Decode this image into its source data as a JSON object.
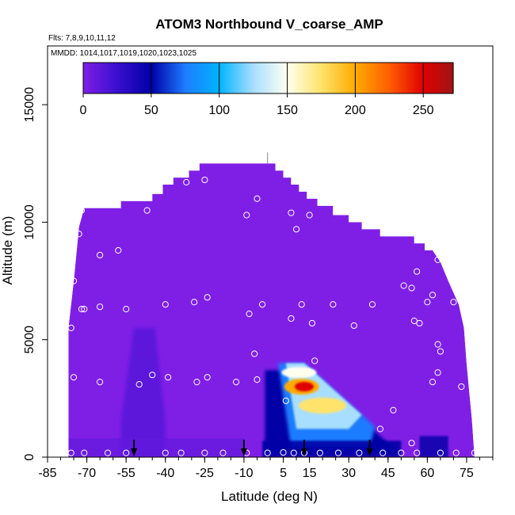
{
  "chart_data": {
    "type": "heatmap",
    "title": "ATOM3 Northbound V_coarse_AMP",
    "subtitle_flights": "Flts: 7,8,9,10,11,12",
    "subtitle_dates": "MMDD: 1014,1017,1019,1020,1023,1025",
    "xlabel": "Latitude (deg N)",
    "ylabel": "Altitude (m)",
    "xlim": [
      -85,
      85
    ],
    "ylim": [
      0,
      17500
    ],
    "x_ticks": [
      -85,
      -70,
      -55,
      -40,
      -25,
      -10,
      5,
      15,
      30,
      45,
      60,
      75
    ],
    "x_tick_labels": [
      "-85",
      "-70",
      "-55",
      "-40",
      "-25",
      "-10",
      "5",
      "15",
      "30",
      "45",
      "60",
      "75"
    ],
    "y_ticks": [
      0,
      5000,
      10000,
      15000
    ],
    "y_tick_labels": [
      "0",
      "5000",
      "10000",
      "15000"
    ],
    "colorbar": {
      "ticks": [
        0,
        50,
        100,
        150,
        200,
        250
      ],
      "tick_labels": [
        "0",
        "50",
        "100",
        "150",
        "200",
        "250"
      ],
      "range": [
        0,
        272
      ],
      "stops": [
        {
          "v": 0,
          "color": "#7f1fe6"
        },
        {
          "v": 25,
          "color": "#3a0fd0"
        },
        {
          "v": 50,
          "color": "#0000a6"
        },
        {
          "v": 75,
          "color": "#1e7cff"
        },
        {
          "v": 100,
          "color": "#00b4ff"
        },
        {
          "v": 125,
          "color": "#a8deff"
        },
        {
          "v": 150,
          "color": "#fffff0"
        },
        {
          "v": 175,
          "color": "#ffe36a"
        },
        {
          "v": 200,
          "color": "#ffab00"
        },
        {
          "v": 225,
          "color": "#ff5e00"
        },
        {
          "v": 250,
          "color": "#e00000"
        },
        {
          "v": 272,
          "color": "#a01515"
        }
      ]
    },
    "envelope_top": [
      {
        "x": -77,
        "y": 5500
      },
      {
        "x": -75,
        "y": 7500
      },
      {
        "x": -73,
        "y": 9800
      },
      {
        "x": -71,
        "y": 10600
      },
      {
        "x": -57,
        "y": 10600
      },
      {
        "x": -57,
        "y": 10900
      },
      {
        "x": -45,
        "y": 10900
      },
      {
        "x": -45,
        "y": 11200
      },
      {
        "x": -41,
        "y": 11200
      },
      {
        "x": -41,
        "y": 11600
      },
      {
        "x": -37,
        "y": 11600
      },
      {
        "x": -37,
        "y": 11900
      },
      {
        "x": -31,
        "y": 11900
      },
      {
        "x": -31,
        "y": 12200
      },
      {
        "x": -27,
        "y": 12200
      },
      {
        "x": -27,
        "y": 12500
      },
      {
        "x": 2,
        "y": 12500
      },
      {
        "x": 2,
        "y": 12200
      },
      {
        "x": 5,
        "y": 12200
      },
      {
        "x": 5,
        "y": 11900
      },
      {
        "x": 8,
        "y": 11900
      },
      {
        "x": 8,
        "y": 11600
      },
      {
        "x": 11,
        "y": 11600
      },
      {
        "x": 11,
        "y": 11300
      },
      {
        "x": 14,
        "y": 11300
      },
      {
        "x": 14,
        "y": 11000
      },
      {
        "x": 18,
        "y": 11000
      },
      {
        "x": 18,
        "y": 10700
      },
      {
        "x": 24,
        "y": 10700
      },
      {
        "x": 24,
        "y": 10300
      },
      {
        "x": 30,
        "y": 10300
      },
      {
        "x": 30,
        "y": 10000
      },
      {
        "x": 35,
        "y": 10000
      },
      {
        "x": 35,
        "y": 9700
      },
      {
        "x": 42,
        "y": 9700
      },
      {
        "x": 42,
        "y": 9400
      },
      {
        "x": 55,
        "y": 9400
      },
      {
        "x": 55,
        "y": 9100
      },
      {
        "x": 59,
        "y": 9100
      },
      {
        "x": 59,
        "y": 8800
      },
      {
        "x": 62,
        "y": 8800
      },
      {
        "x": 65,
        "y": 8300
      },
      {
        "x": 68,
        "y": 7500
      },
      {
        "x": 72,
        "y": 6500
      },
      {
        "x": 74,
        "y": 5500
      },
      {
        "x": 75,
        "y": 4000
      },
      {
        "x": 76,
        "y": 2800
      },
      {
        "x": 77,
        "y": 1600
      },
      {
        "x": 78,
        "y": 0
      }
    ],
    "envelope_left_bottom_x": -77,
    "features": [
      {
        "name": "plume-left",
        "x": [
          -57,
          -52,
          -44,
          -40
        ],
        "y_top": [
          1500,
          5500,
          5500,
          1500
        ],
        "value": 15
      },
      {
        "name": "low-band-left",
        "x": [
          -77,
          -10
        ],
        "y_top": [
          800,
          800
        ],
        "value": 10
      },
      {
        "name": "dust-core",
        "value": 230,
        "x": 13,
        "y": 3000
      },
      {
        "name": "dust-upper",
        "value": 150,
        "x": 12,
        "y": 4000
      },
      {
        "name": "dust-lower",
        "value": 110,
        "x": 20,
        "y": 1800
      },
      {
        "name": "blue-base",
        "value": 45,
        "x": 10,
        "y": 400
      },
      {
        "name": "blue-right",
        "value": 50,
        "x": 63,
        "y": 600
      }
    ],
    "profile_points": [
      {
        "x": -76,
        "y": 5500
      },
      {
        "x": -75,
        "y": 7500
      },
      {
        "x": -73,
        "y": 9500
      },
      {
        "x": -72,
        "y": 10500
      },
      {
        "x": -71,
        "y": 6300
      },
      {
        "x": -75,
        "y": 3400
      },
      {
        "x": -65,
        "y": 6400
      },
      {
        "x": -65,
        "y": 8600
      },
      {
        "x": -65,
        "y": 3200
      },
      {
        "x": -72,
        "y": 6300
      },
      {
        "x": -58,
        "y": 8800
      },
      {
        "x": -55,
        "y": 6300
      },
      {
        "x": -50,
        "y": 3100
      },
      {
        "x": -47,
        "y": 10500
      },
      {
        "x": -45,
        "y": 3500
      },
      {
        "x": -40,
        "y": 6500
      },
      {
        "x": -39,
        "y": 3400
      },
      {
        "x": -32,
        "y": 11700
      },
      {
        "x": -29,
        "y": 6600
      },
      {
        "x": -28,
        "y": 3200
      },
      {
        "x": -25,
        "y": 11800
      },
      {
        "x": -24,
        "y": 6800
      },
      {
        "x": -24,
        "y": 3400
      },
      {
        "x": -13,
        "y": 3200
      },
      {
        "x": -9,
        "y": 10300
      },
      {
        "x": -8,
        "y": 6100
      },
      {
        "x": -5,
        "y": 11000
      },
      {
        "x": -6,
        "y": 4400
      },
      {
        "x": -3,
        "y": 6500
      },
      {
        "x": 8,
        "y": 10400
      },
      {
        "x": 10,
        "y": 9700
      },
      {
        "x": 12,
        "y": 6500
      },
      {
        "x": 8,
        "y": 5900
      },
      {
        "x": 15,
        "y": 10300
      },
      {
        "x": 16,
        "y": 5700
      },
      {
        "x": 17,
        "y": 4100
      },
      {
        "x": 6,
        "y": 2400
      },
      {
        "x": 24,
        "y": 6500
      },
      {
        "x": 32,
        "y": 5600
      },
      {
        "x": 39,
        "y": 6500
      },
      {
        "x": 42,
        "y": 1200
      },
      {
        "x": 47,
        "y": 2000
      },
      {
        "x": 51,
        "y": 7300
      },
      {
        "x": 54,
        "y": 7200
      },
      {
        "x": 55,
        "y": 5800
      },
      {
        "x": 57,
        "y": 5700
      },
      {
        "x": 56,
        "y": 7900
      },
      {
        "x": 60,
        "y": 6600
      },
      {
        "x": 62,
        "y": 6900
      },
      {
        "x": 64,
        "y": 8400
      },
      {
        "x": 62,
        "y": 3200
      },
      {
        "x": 64,
        "y": 3600
      },
      {
        "x": 65,
        "y": 4500
      },
      {
        "x": 64,
        "y": 4800
      },
      {
        "x": 70,
        "y": 6600
      },
      {
        "x": 73,
        "y": 3000
      },
      {
        "x": 54,
        "y": 600
      },
      {
        "x": -5,
        "y": 3300
      },
      {
        "x": 5,
        "y": 200
      }
    ],
    "ground_points_x": [
      -76,
      -71,
      -62,
      -55,
      -40,
      -34,
      -25,
      -18,
      -9,
      -1,
      9,
      13,
      19,
      26,
      34,
      43,
      50,
      56,
      65,
      71,
      78
    ],
    "ground_points_y": 180,
    "flight_arrows_x": [
      -52,
      -10,
      13,
      38
    ],
    "ceiling_tick": {
      "x": -1,
      "y": 12700
    }
  }
}
